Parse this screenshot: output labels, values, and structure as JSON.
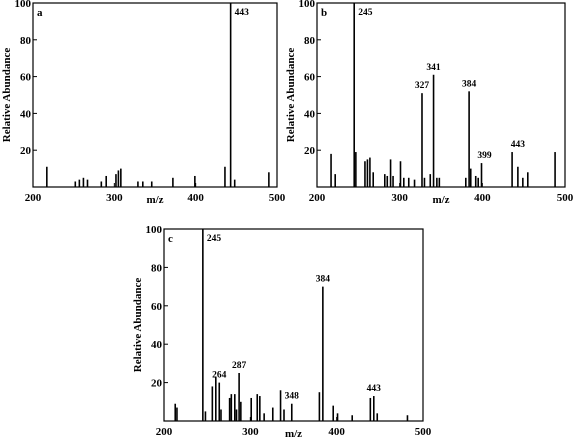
{
  "chart_data": [
    {
      "type": "bar",
      "panel": "a",
      "xlabel": "m/z",
      "ylabel": "Relative Abundance",
      "xlim": [
        200,
        500
      ],
      "ylim": [
        0,
        100
      ],
      "x_ticks": [
        200,
        300,
        400,
        500
      ],
      "y_ticks": [
        20,
        40,
        60,
        80,
        100
      ],
      "peaks": [
        {
          "x": 217,
          "y": 11
        },
        {
          "x": 252,
          "y": 3
        },
        {
          "x": 257,
          "y": 4
        },
        {
          "x": 262,
          "y": 5
        },
        {
          "x": 267,
          "y": 4
        },
        {
          "x": 284,
          "y": 3
        },
        {
          "x": 290,
          "y": 6
        },
        {
          "x": 302,
          "y": 7
        },
        {
          "x": 305,
          "y": 9
        },
        {
          "x": 308,
          "y": 10
        },
        {
          "x": 329,
          "y": 3
        },
        {
          "x": 335,
          "y": 3
        },
        {
          "x": 346,
          "y": 3
        },
        {
          "x": 372,
          "y": 5
        },
        {
          "x": 399,
          "y": 6
        },
        {
          "x": 436,
          "y": 11
        },
        {
          "x": 443,
          "y": 100
        },
        {
          "x": 448,
          "y": 4
        },
        {
          "x": 490,
          "y": 8
        }
      ],
      "labels": [
        {
          "x": 443,
          "y": 100,
          "text": "443"
        }
      ]
    },
    {
      "type": "bar",
      "panel": "b",
      "xlabel": "m/z",
      "ylabel": "Relative Abundance",
      "xlim": [
        200,
        500
      ],
      "ylim": [
        0,
        100
      ],
      "x_ticks": [
        200,
        300,
        400,
        500
      ],
      "y_ticks": [
        20,
        40,
        60,
        80,
        100
      ],
      "peaks": [
        {
          "x": 217,
          "y": 18
        },
        {
          "x": 222,
          "y": 7
        },
        {
          "x": 245,
          "y": 100
        },
        {
          "x": 247,
          "y": 19
        },
        {
          "x": 258,
          "y": 14
        },
        {
          "x": 261,
          "y": 15
        },
        {
          "x": 264,
          "y": 16
        },
        {
          "x": 268,
          "y": 8
        },
        {
          "x": 282,
          "y": 7
        },
        {
          "x": 285,
          "y": 6
        },
        {
          "x": 289,
          "y": 15
        },
        {
          "x": 292,
          "y": 6
        },
        {
          "x": 301,
          "y": 14
        },
        {
          "x": 305,
          "y": 5
        },
        {
          "x": 311,
          "y": 5
        },
        {
          "x": 318,
          "y": 4
        },
        {
          "x": 327,
          "y": 51
        },
        {
          "x": 330,
          "y": 5
        },
        {
          "x": 337,
          "y": 7
        },
        {
          "x": 341,
          "y": 61
        },
        {
          "x": 345,
          "y": 5
        },
        {
          "x": 348,
          "y": 5
        },
        {
          "x": 380,
          "y": 5
        },
        {
          "x": 384,
          "y": 52
        },
        {
          "x": 386,
          "y": 10
        },
        {
          "x": 392,
          "y": 6
        },
        {
          "x": 395,
          "y": 5
        },
        {
          "x": 399,
          "y": 13
        },
        {
          "x": 436,
          "y": 19
        },
        {
          "x": 443,
          "y": 11
        },
        {
          "x": 449,
          "y": 5
        },
        {
          "x": 455,
          "y": 8
        },
        {
          "x": 488,
          "y": 19
        }
      ],
      "labels": [
        {
          "x": 245,
          "y": 100,
          "text": "245"
        },
        {
          "x": 327,
          "y": 51,
          "text": "327"
        },
        {
          "x": 341,
          "y": 61,
          "text": "341"
        },
        {
          "x": 384,
          "y": 52,
          "text": "384"
        },
        {
          "x": 399,
          "y": 13,
          "text": "399"
        },
        {
          "x": 443,
          "y": 19,
          "text": "443"
        }
      ]
    },
    {
      "type": "bar",
      "panel": "c",
      "xlabel": "m/z",
      "ylabel": "Relative Abundance",
      "xlim": [
        200,
        500
      ],
      "ylim": [
        0,
        100
      ],
      "x_ticks": [
        200,
        300,
        400,
        500
      ],
      "y_ticks": [
        20,
        40,
        60,
        80,
        100
      ],
      "peaks": [
        {
          "x": 213,
          "y": 9
        },
        {
          "x": 215,
          "y": 7
        },
        {
          "x": 245,
          "y": 100
        },
        {
          "x": 248,
          "y": 5
        },
        {
          "x": 256,
          "y": 18
        },
        {
          "x": 260,
          "y": 23
        },
        {
          "x": 264,
          "y": 20
        },
        {
          "x": 266,
          "y": 6
        },
        {
          "x": 276,
          "y": 12
        },
        {
          "x": 278,
          "y": 14
        },
        {
          "x": 282,
          "y": 14
        },
        {
          "x": 284,
          "y": 6
        },
        {
          "x": 287,
          "y": 25
        },
        {
          "x": 289,
          "y": 10
        },
        {
          "x": 301,
          "y": 12
        },
        {
          "x": 308,
          "y": 14
        },
        {
          "x": 311,
          "y": 13
        },
        {
          "x": 316,
          "y": 4
        },
        {
          "x": 326,
          "y": 7
        },
        {
          "x": 335,
          "y": 16
        },
        {
          "x": 339,
          "y": 6
        },
        {
          "x": 348,
          "y": 9
        },
        {
          "x": 380,
          "y": 15
        },
        {
          "x": 384,
          "y": 70
        },
        {
          "x": 396,
          "y": 8
        },
        {
          "x": 401,
          "y": 4
        },
        {
          "x": 418,
          "y": 3
        },
        {
          "x": 439,
          "y": 12
        },
        {
          "x": 443,
          "y": 13
        },
        {
          "x": 447,
          "y": 4
        },
        {
          "x": 482,
          "y": 3
        }
      ],
      "labels": [
        {
          "x": 245,
          "y": 100,
          "text": "245"
        },
        {
          "x": 264,
          "y": 20,
          "text": "264"
        },
        {
          "x": 287,
          "y": 25,
          "text": "287"
        },
        {
          "x": 348,
          "y": 9,
          "text": "348"
        },
        {
          "x": 384,
          "y": 70,
          "text": "384"
        },
        {
          "x": 443,
          "y": 13,
          "text": "443"
        }
      ]
    }
  ]
}
